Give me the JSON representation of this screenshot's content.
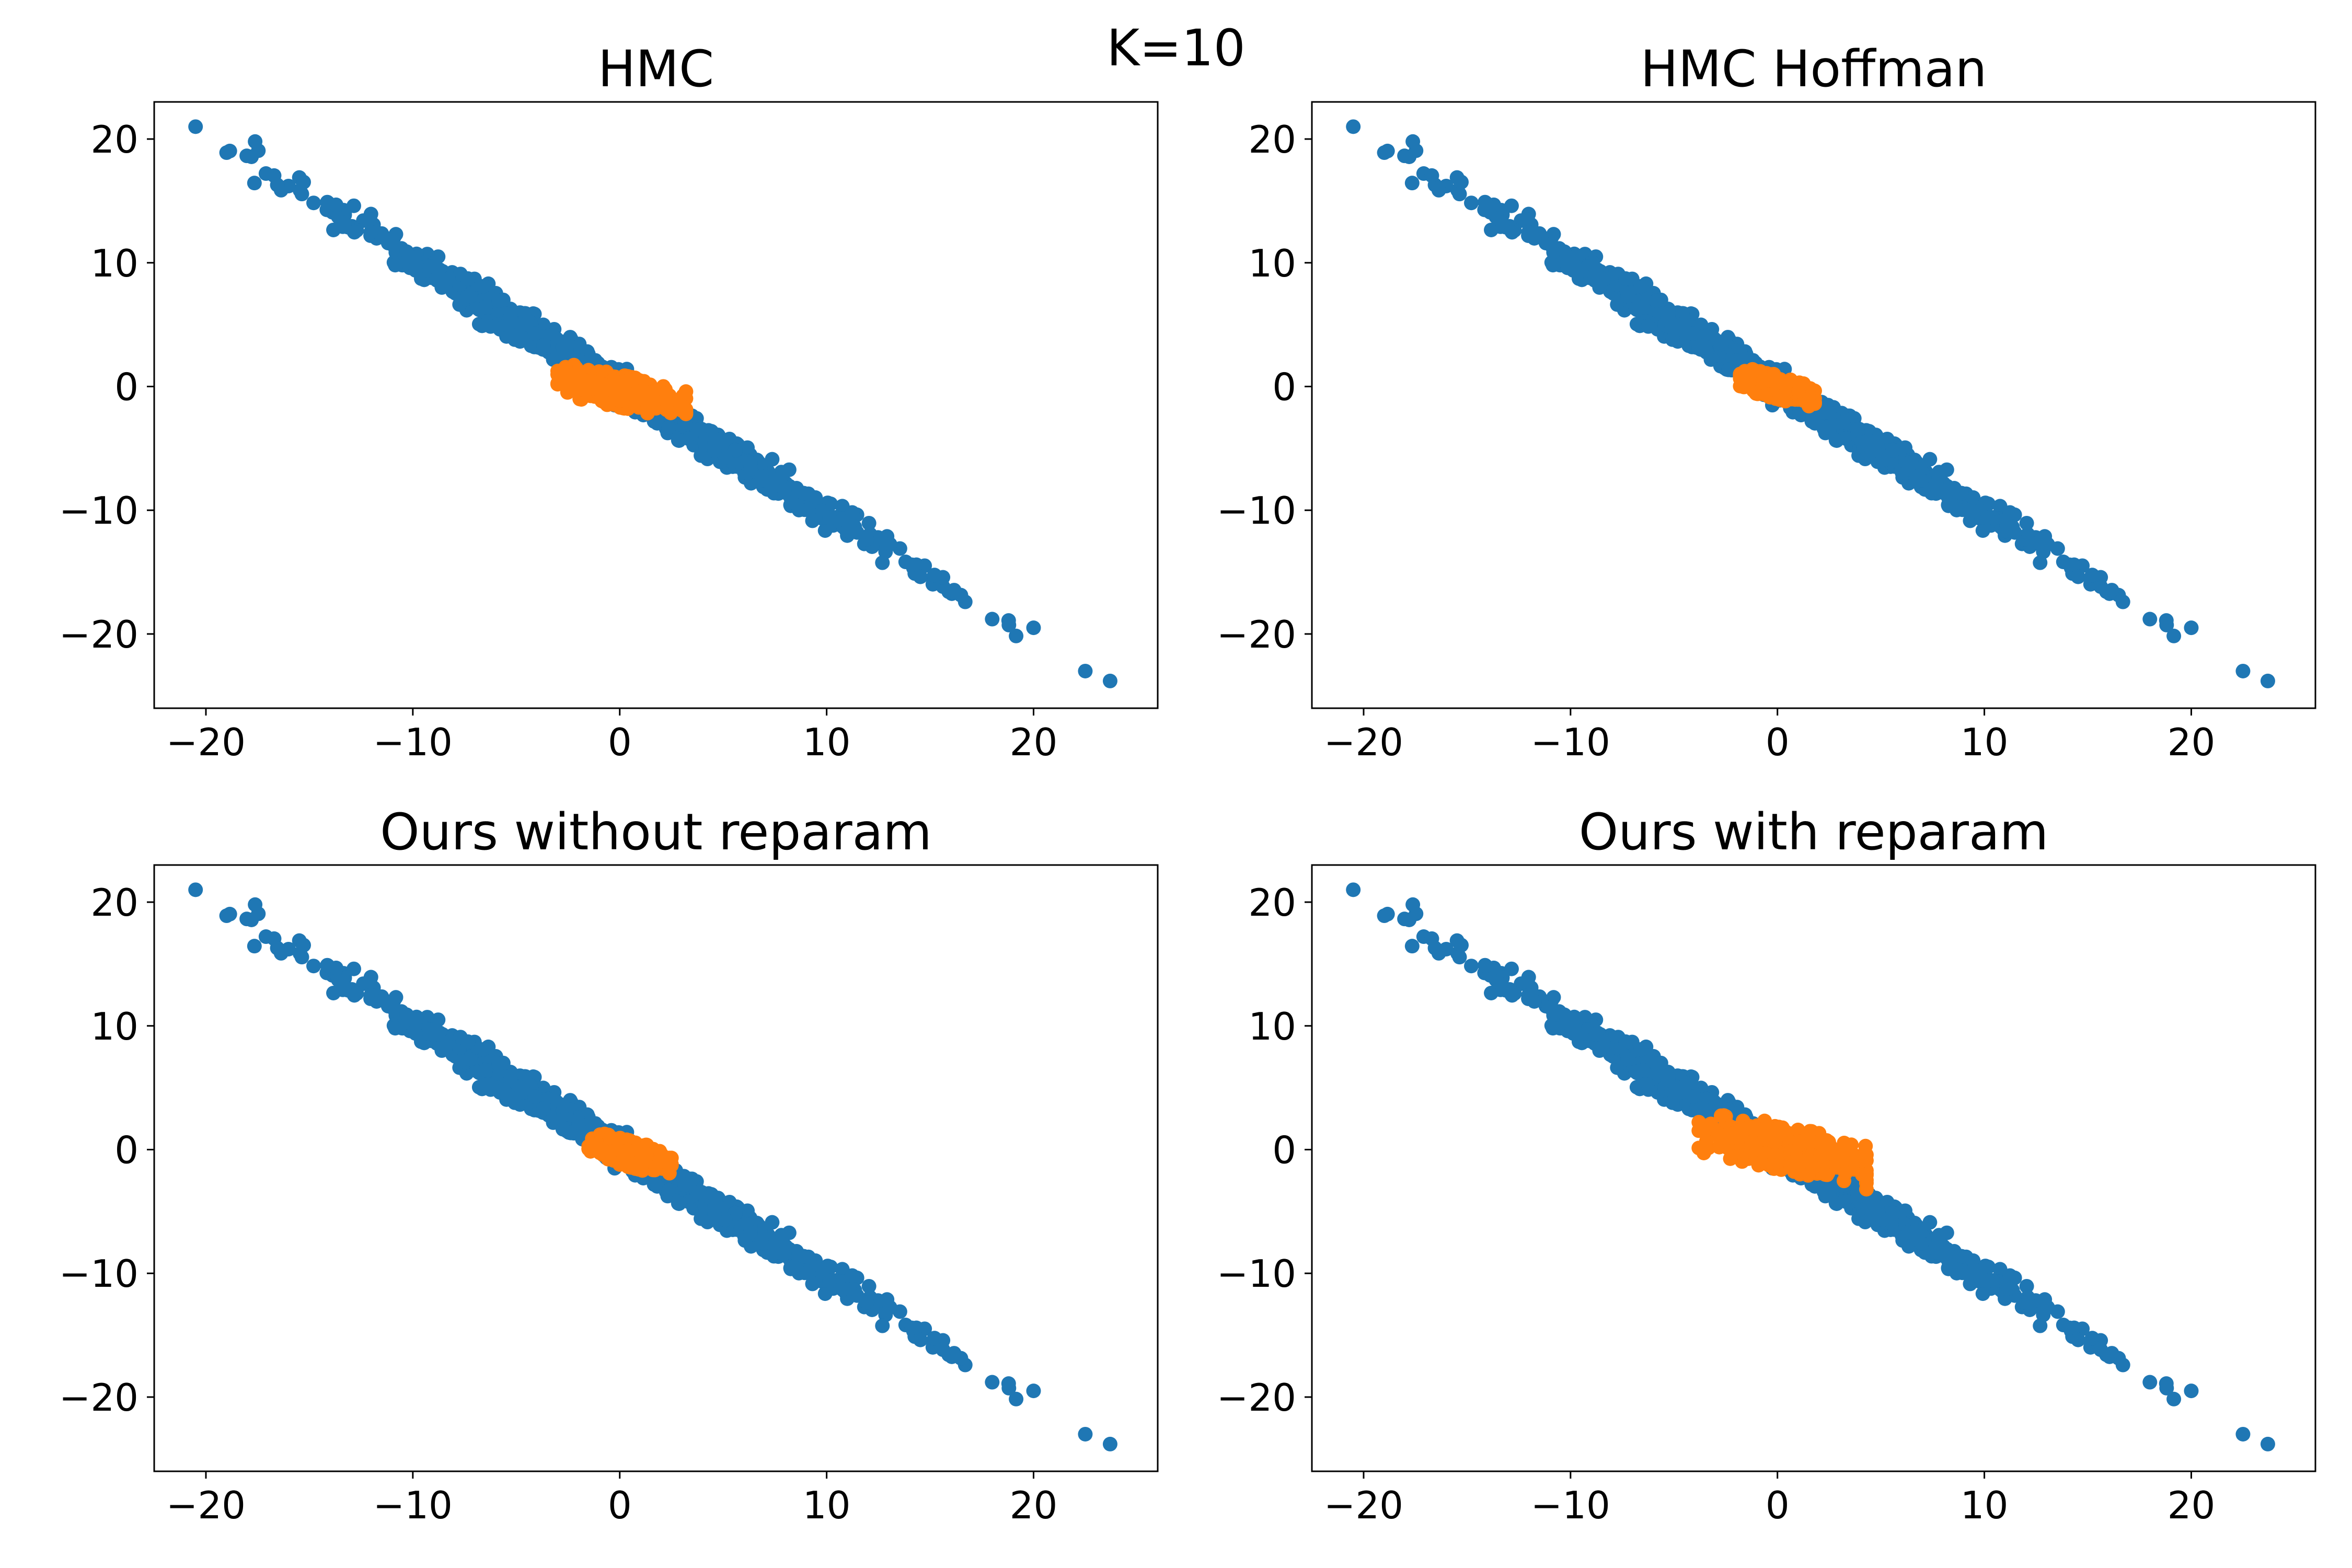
{
  "figure": {
    "suptitle": "K=10"
  },
  "chart_data": [
    {
      "type": "scatter",
      "title": "HMC",
      "xlim": [
        -22.5,
        26
      ],
      "ylim": [
        -26,
        23
      ],
      "xticks": [
        -20,
        -10,
        0,
        10,
        20
      ],
      "yticks": [
        20,
        10,
        0,
        -10,
        -20
      ],
      "xtick_labels": [
        "−20",
        "−10",
        "0",
        "10",
        "20"
      ],
      "ytick_labels": [
        "20",
        "10",
        "0",
        "−10",
        "−20"
      ],
      "grid": false,
      "series": [
        {
          "color": "#1f77b4",
          "shape": "elongated cloud along y = -x",
          "x_range": [
            -20.5,
            23.7
          ],
          "y_range": [
            -23.8,
            21.0
          ],
          "points": [
            [
              -20.5,
              21.0
            ],
            [
              22.5,
              -23.0
            ],
            [
              23.7,
              -23.8
            ],
            [
              20.0,
              -19.5
            ],
            [
              18.0,
              -18.8
            ],
            [
              -19.0,
              18.9
            ]
          ]
        },
        {
          "color": "#ff7f0e",
          "shape": "compact cloud near origin",
          "x_range": [
            -3.0,
            3.2
          ],
          "y_range": [
            -2.8,
            2.0
          ]
        }
      ]
    },
    {
      "type": "scatter",
      "title": "HMC Hoffman",
      "xlim": [
        -22.5,
        26
      ],
      "ylim": [
        -26,
        23
      ],
      "xticks": [
        -20,
        -10,
        0,
        10,
        20
      ],
      "yticks": [
        20,
        10,
        0,
        -10,
        -20
      ],
      "xtick_labels": [
        "−20",
        "−10",
        "0",
        "10",
        "20"
      ],
      "ytick_labels": [
        "20",
        "10",
        "0",
        "−10",
        "−20"
      ],
      "grid": false,
      "series": [
        {
          "color": "#1f77b4",
          "shape": "elongated cloud along y = -x",
          "x_range": [
            -20.5,
            23.7
          ],
          "y_range": [
            -23.8,
            21.0
          ],
          "points": [
            [
              -20.5,
              21.0
            ],
            [
              22.5,
              -23.0
            ],
            [
              23.7,
              -23.8
            ],
            [
              20.0,
              -19.5
            ],
            [
              18.0,
              -18.8
            ],
            [
              -19.0,
              18.9
            ]
          ]
        },
        {
          "color": "#ff7f0e",
          "shape": "compact cloud near origin",
          "x_range": [
            -1.8,
            1.8
          ],
          "y_range": [
            -1.8,
            1.7
          ]
        }
      ]
    },
    {
      "type": "scatter",
      "title": "Ours without reparam",
      "xlim": [
        -22.5,
        26
      ],
      "ylim": [
        -26,
        23
      ],
      "xticks": [
        -20,
        -10,
        0,
        10,
        20
      ],
      "yticks": [
        20,
        10,
        0,
        -10,
        -20
      ],
      "xtick_labels": [
        "−20",
        "−10",
        "0",
        "10",
        "20"
      ],
      "ytick_labels": [
        "20",
        "10",
        "0",
        "−10",
        "−20"
      ],
      "grid": false,
      "series": [
        {
          "color": "#1f77b4",
          "shape": "elongated cloud along y = -x",
          "x_range": [
            -20.5,
            23.7
          ],
          "y_range": [
            -23.8,
            21.0
          ],
          "points": [
            [
              -20.5,
              21.0
            ],
            [
              22.5,
              -23.0
            ],
            [
              23.7,
              -23.8
            ],
            [
              20.0,
              -19.5
            ],
            [
              18.0,
              -18.8
            ],
            [
              -19.0,
              18.9
            ]
          ]
        },
        {
          "color": "#ff7f0e",
          "shape": "compact cloud near origin",
          "x_range": [
            -1.5,
            2.5
          ],
          "y_range": [
            -2.3,
            1.6
          ]
        }
      ]
    },
    {
      "type": "scatter",
      "title": "Ours with reparam",
      "xlim": [
        -22.5,
        26
      ],
      "ylim": [
        -26,
        23
      ],
      "xticks": [
        -20,
        -10,
        0,
        10,
        20
      ],
      "yticks": [
        20,
        10,
        0,
        -10,
        -20
      ],
      "xtick_labels": [
        "−20",
        "−10",
        "0",
        "10",
        "20"
      ],
      "ytick_labels": [
        "20",
        "10",
        "0",
        "−10",
        "−20"
      ],
      "grid": false,
      "series": [
        {
          "color": "#1f77b4",
          "shape": "elongated cloud along y = -x",
          "x_range": [
            -20.5,
            23.7
          ],
          "y_range": [
            -23.8,
            21.0
          ],
          "points": [
            [
              -20.5,
              21.0
            ],
            [
              22.5,
              -23.0
            ],
            [
              23.7,
              -23.8
            ],
            [
              20.0,
              -19.5
            ],
            [
              18.0,
              -18.8
            ],
            [
              -19.0,
              18.9
            ]
          ]
        },
        {
          "color": "#ff7f0e",
          "shape": "wider cloud near origin",
          "x_range": [
            -3.8,
            4.3
          ],
          "y_range": [
            -3.2,
            3.5
          ]
        }
      ]
    }
  ]
}
